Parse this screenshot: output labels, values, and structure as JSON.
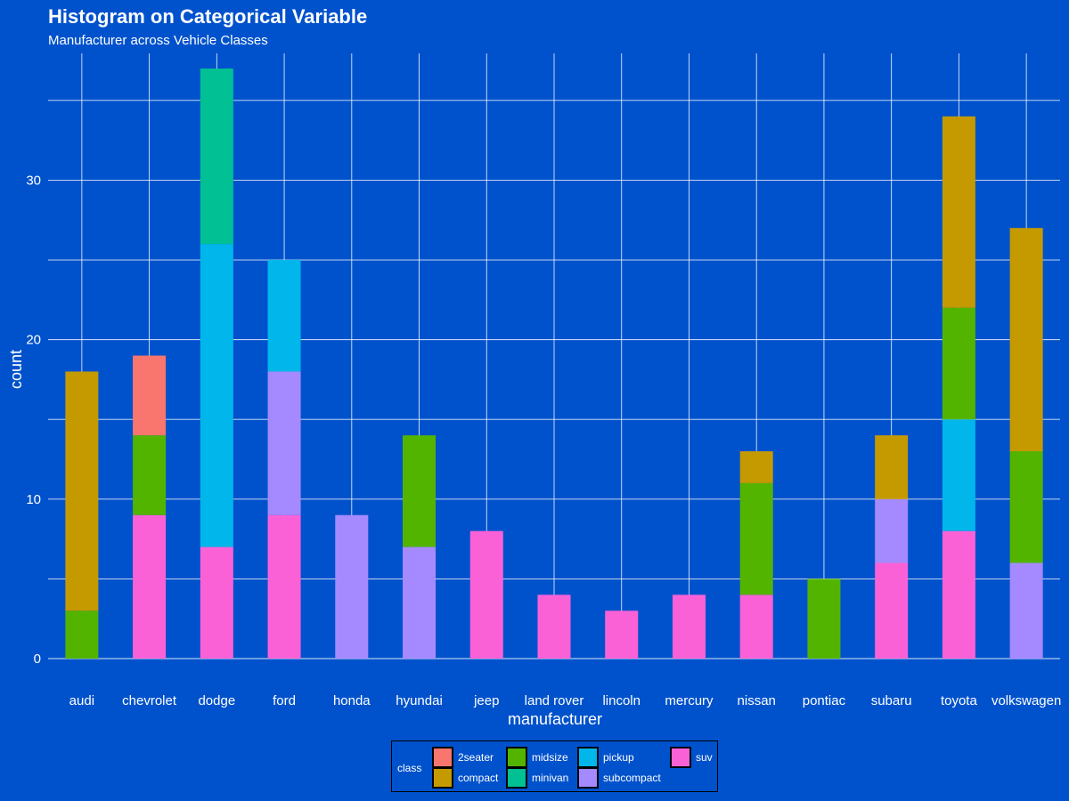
{
  "chart_data": {
    "type": "bar",
    "stacked": true,
    "title": "Histogram on Categorical Variable",
    "subtitle": "Manufacturer across Vehicle Classes",
    "xlabel": "manufacturer",
    "ylabel": "count",
    "ylim": [
      0,
      37
    ],
    "yticks": [
      0,
      10,
      20,
      30
    ],
    "grid": true,
    "legend_position": "bottom",
    "legend_title": "class",
    "categories": [
      "audi",
      "chevrolet",
      "dodge",
      "ford",
      "honda",
      "hyundai",
      "jeep",
      "land rover",
      "lincoln",
      "mercury",
      "nissan",
      "pontiac",
      "subaru",
      "toyota",
      "volkswagen"
    ],
    "series": [
      {
        "name": "2seater",
        "color": "#F8766D",
        "values": [
          0,
          5,
          0,
          0,
          0,
          0,
          0,
          0,
          0,
          0,
          0,
          0,
          0,
          0,
          0
        ]
      },
      {
        "name": "compact",
        "color": "#C49A00",
        "values": [
          15,
          0,
          0,
          0,
          0,
          0,
          0,
          0,
          0,
          0,
          2,
          0,
          4,
          12,
          14
        ]
      },
      {
        "name": "midsize",
        "color": "#53B400",
        "values": [
          3,
          5,
          0,
          0,
          0,
          7,
          0,
          0,
          0,
          0,
          7,
          5,
          0,
          7,
          7
        ]
      },
      {
        "name": "minivan",
        "color": "#00C094",
        "values": [
          0,
          0,
          11,
          0,
          0,
          0,
          0,
          0,
          0,
          0,
          0,
          0,
          0,
          0,
          0
        ]
      },
      {
        "name": "pickup",
        "color": "#00B6EB",
        "values": [
          0,
          0,
          19,
          7,
          0,
          0,
          0,
          0,
          0,
          0,
          0,
          0,
          0,
          7,
          0
        ]
      },
      {
        "name": "subcompact",
        "color": "#A58AFF",
        "values": [
          0,
          0,
          0,
          9,
          9,
          7,
          0,
          0,
          0,
          0,
          0,
          0,
          4,
          0,
          6
        ]
      },
      {
        "name": "suv",
        "color": "#FB61D7",
        "values": [
          0,
          9,
          7,
          9,
          0,
          0,
          8,
          4,
          3,
          4,
          4,
          0,
          6,
          8,
          0
        ]
      }
    ]
  }
}
